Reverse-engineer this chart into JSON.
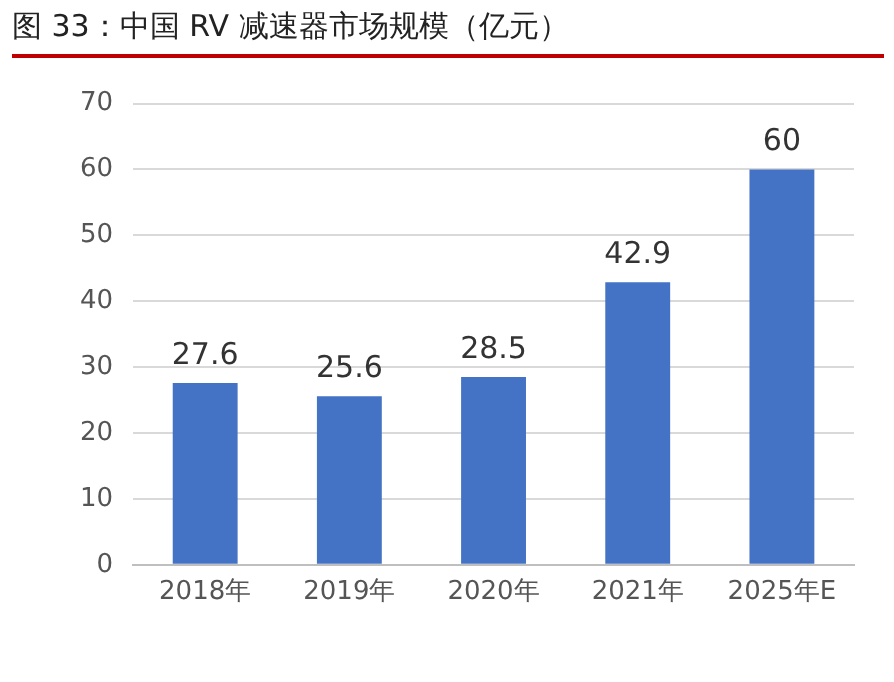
{
  "chart_data": {
    "type": "bar",
    "title": "图 33：中国 RV 减速器市场规模（亿元）",
    "categories": [
      "2018年",
      "2019年",
      "2020年",
      "2021年",
      "2025年E"
    ],
    "values": [
      27.6,
      25.6,
      28.5,
      42.9,
      60
    ],
    "value_labels": [
      "27.6",
      "25.6",
      "28.5",
      "42.9",
      "60"
    ],
    "color": "#4472c4",
    "ylim": [
      0,
      70
    ],
    "yticks": [
      0,
      10,
      20,
      30,
      40,
      50,
      60,
      70
    ],
    "grid": "y",
    "legend": false
  }
}
